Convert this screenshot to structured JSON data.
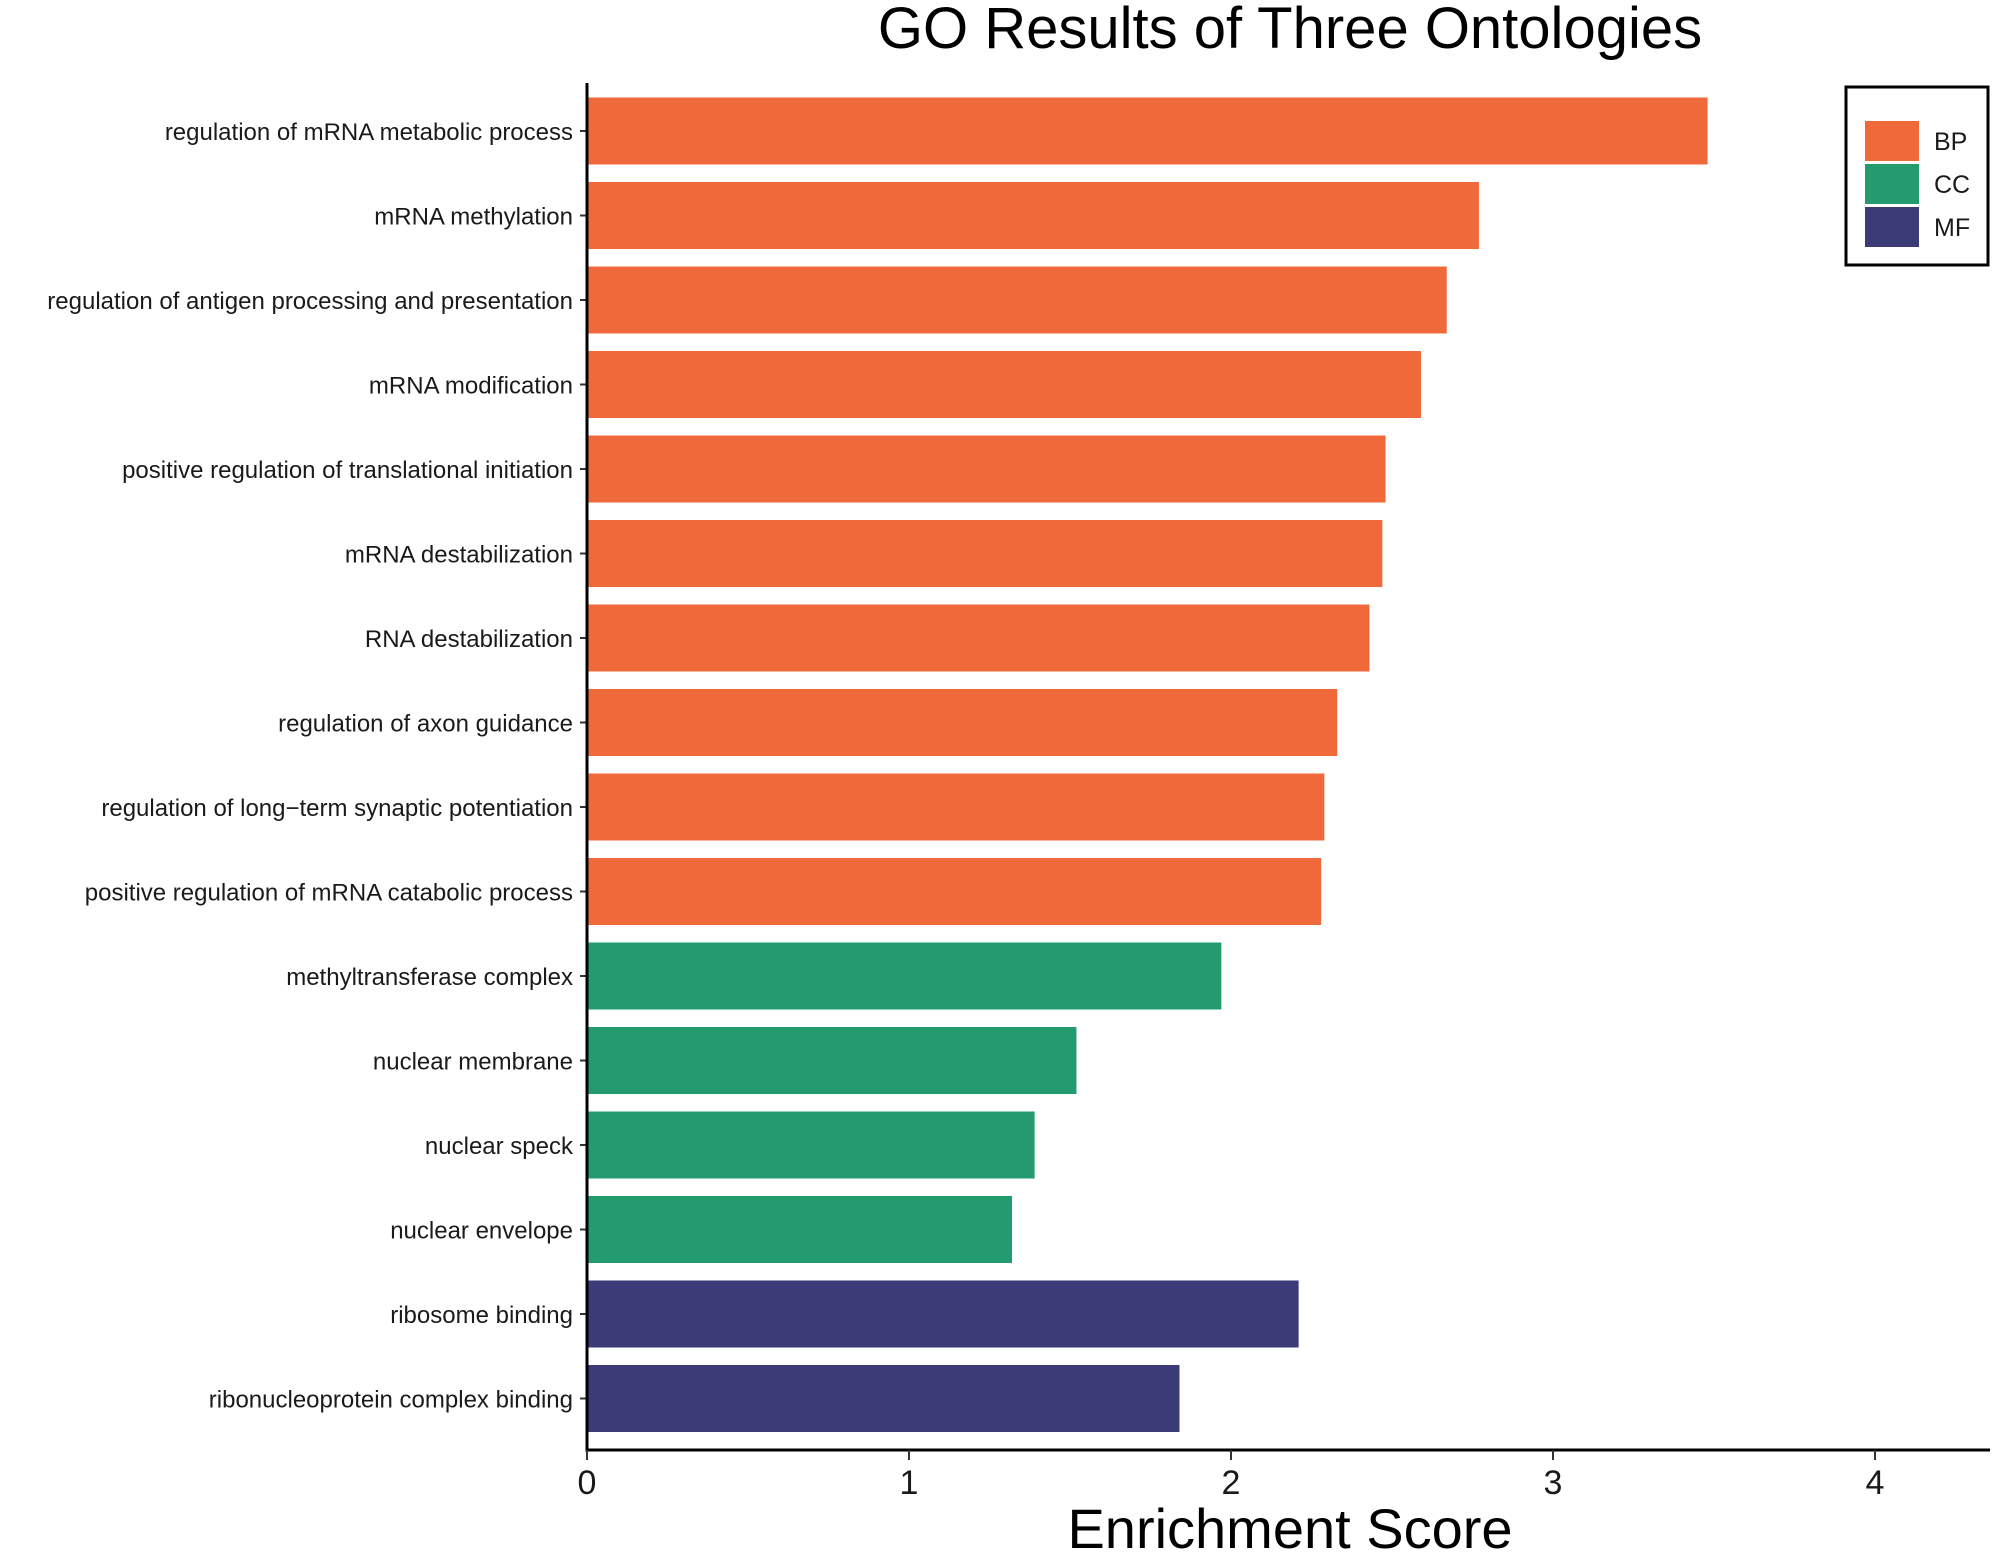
{
  "chart_data": {
    "type": "bar",
    "orientation": "horizontal",
    "title": "GO Results of Three Ontologies",
    "xlabel": "Enrichment Score",
    "ylabel": "",
    "xlim": [
      0,
      4.35
    ],
    "xticks": [
      0,
      1,
      2,
      3,
      4
    ],
    "grid": false,
    "legend_position": "top-right",
    "legend": [
      {
        "name": "BP",
        "color": "#F0693A"
      },
      {
        "name": "CC",
        "color": "#239B6E"
      },
      {
        "name": "MF",
        "color": "#3B3B78"
      }
    ],
    "categories": [
      "regulation of mRNA metabolic process",
      "mRNA methylation",
      "regulation of antigen processing and presentation",
      "mRNA modification",
      "positive regulation of translational initiation",
      "mRNA destabilization",
      "RNA destabilization",
      "regulation of axon guidance",
      "regulation of long−term synaptic potentiation",
      "positive regulation of mRNA catabolic process",
      "methyltransferase complex",
      "nuclear membrane",
      "nuclear speck",
      "nuclear envelope",
      "ribosome binding",
      "ribonucleoprotein complex binding"
    ],
    "values": [
      3.48,
      2.77,
      2.67,
      2.59,
      2.48,
      2.47,
      2.43,
      2.33,
      2.29,
      2.28,
      1.97,
      1.52,
      1.39,
      1.32,
      2.21,
      1.84
    ],
    "groups": [
      "BP",
      "BP",
      "BP",
      "BP",
      "BP",
      "BP",
      "BP",
      "BP",
      "BP",
      "BP",
      "CC",
      "CC",
      "CC",
      "CC",
      "MF",
      "MF"
    ]
  }
}
